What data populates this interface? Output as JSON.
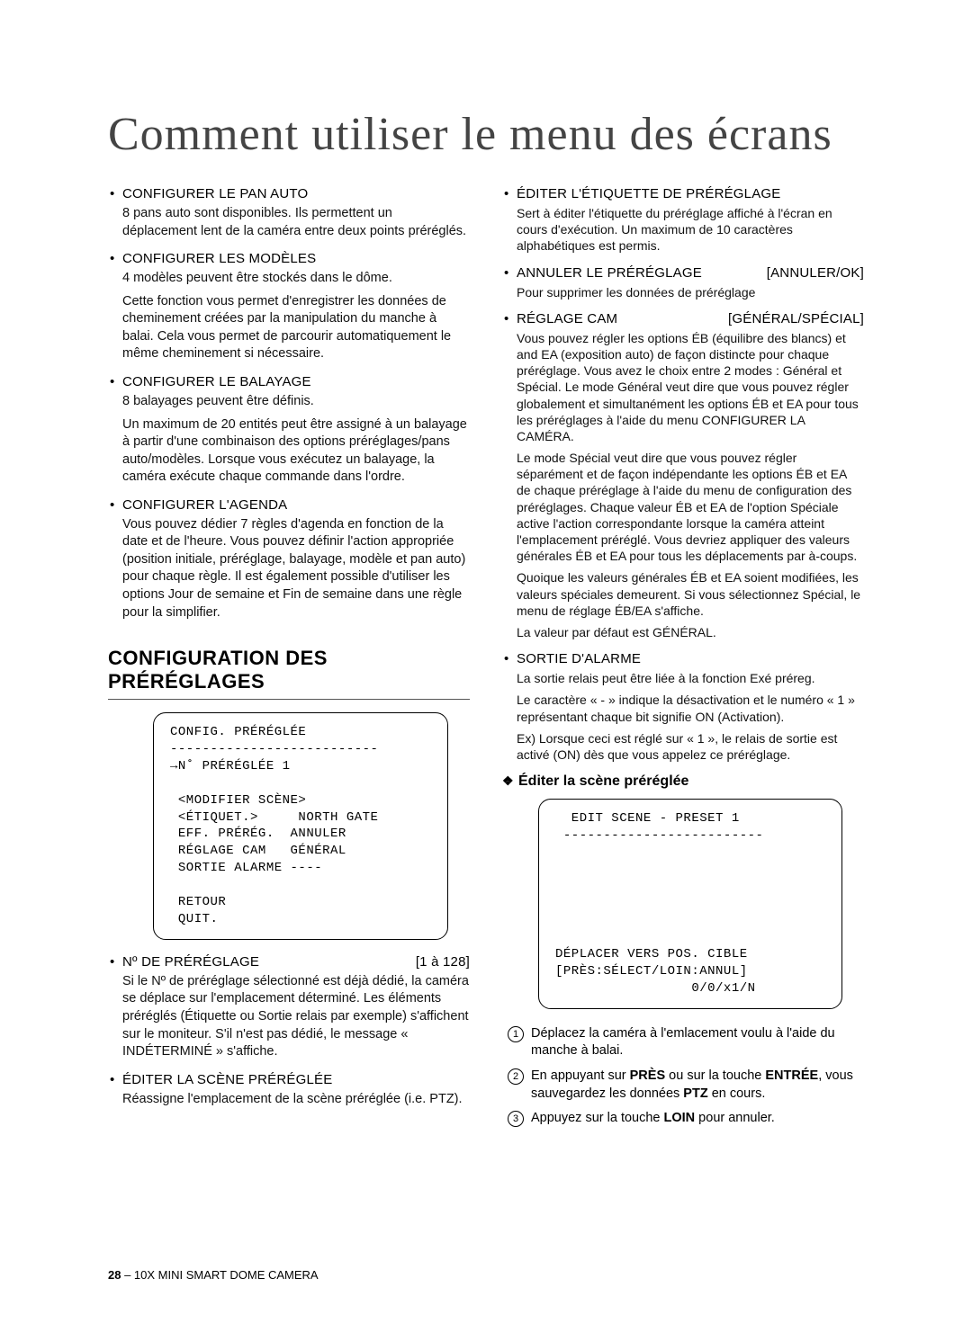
{
  "page": {
    "title": "Comment utiliser le menu des écrans",
    "footer_page": "28",
    "footer_text": " – 10X MINI SMART DOME CAMERA"
  },
  "left": {
    "items": [
      {
        "head": "CONFIGURER LE PAN AUTO",
        "body": [
          "8 pans auto sont disponibles. Ils permettent un déplacement lent de la caméra entre deux points préréglés."
        ]
      },
      {
        "head": "CONFIGURER LES MODÈLES",
        "body": [
          "4 modèles peuvent être stockés dans le dôme.",
          "Cette fonction vous permet d'enregistrer les données de cheminement créées par la manipulation du manche à balai. Cela vous permet de parcourir automatiquement le même cheminement si nécessaire."
        ]
      },
      {
        "head": "CONFIGURER LE BALAYAGE",
        "body": [
          "8 balayages peuvent être définis.",
          "Un maximum de 20 entités peut être assigné à un balayage à partir d'une combinaison des options préréglages/pans auto/modèles. Lorsque vous exécutez un balayage, la caméra exécute chaque commande dans l'ordre."
        ]
      },
      {
        "head": "CONFIGURER L'AGENDA",
        "body": [
          "Vous pouvez dédier 7 règles d'agenda en fonction de la date et de l'heure. Vous pouvez définir l'action appropriée (position initiale, préréglage, balayage, modèle et pan auto) pour chaque règle. Il est également possible d'utiliser les options Jour de semaine et Fin de semaine dans une règle pour la simplifier."
        ]
      }
    ],
    "section_title_1": "CONFIGURATION DES",
    "section_title_2": "PRÉRÉGLAGES",
    "menu": "CONFIG. PRÉRÉGLÉE\n--------------------------\n→N˚ PRÉRÉGLÉE 1\n\n <MODIFIER SCÈNE>\n <ÉTIQUET.>     NORTH GATE\n EFF. PRÉRÉG.  ANNULER\n RÉGLAGE CAM   GÉNÉRAL\n SORTIE ALARME ----\n\n RETOUR\n QUIT.",
    "after_items": [
      {
        "head": "Nº DE PRÉRÉGLAGE",
        "tag": "[1 à 128]",
        "body": [
          "Si le Nº de préréglage sélectionné est déjà dédié, la caméra se déplace sur l'emplacement déterminé. Les éléments préréglés (Étiquette ou Sortie relais par exemple) s'affichent sur le moniteur. S'il n'est pas dédié, le message « INDÉTERMINÉ » s'affiche."
        ]
      },
      {
        "head": "ÉDITER LA SCÈNE PRÉRÉGLÉE",
        "body": [
          "Réassigne l'emplacement de la scène préréglée (i.e. PTZ)."
        ]
      }
    ]
  },
  "right": {
    "items": [
      {
        "head": "ÉDITER L'ÉTIQUETTE DE PRÉRÉGLAGE",
        "body": [
          "Sert à éditer l'étiquette du préréglage affiché à l'écran en cours d'exécution. Un maximum de 10 caractères alphabétiques est permis."
        ]
      },
      {
        "head": "ANNULER LE PRÉRÉGLAGE",
        "tag": "[ANNULER/OK]",
        "body": [
          "Pour supprimer les données de préréglage"
        ]
      },
      {
        "head": "RÉGLAGE CAM",
        "tag": "[GÉNÉRAL/SPÉCIAL]",
        "body": [
          "Vous pouvez régler les options ÉB (équilibre des blancs) et and EA (exposition auto) de façon distincte pour chaque préréglage. Vous avez le choix entre 2 modes : Général et Spécial. Le mode Général veut dire que vous pouvez régler globalement et simultanément les options ÉB et EA pour tous les préréglages à l'aide du menu CONFIGURER LA CAMÉRA.",
          "Le mode Spécial veut dire que vous pouvez régler séparément et de façon indépendante les options ÉB et EA de chaque préréglage à l'aide du menu de configuration des préréglages. Chaque valeur ÉB et EA de l'option Spéciale active l'action correspondante lorsque la caméra atteint l'emplacement préréglé. Vous devriez appliquer des valeurs générales ÉB et EA pour tous les déplacements par à-coups.",
          "Quoique les valeurs générales ÉB et EA soient modifiées, les valeurs spéciales demeurent. Si vous sélectionnez Spécial, le menu de réglage ÉB/EA s'affiche.",
          "La valeur par défaut est GÉNÉRAL."
        ]
      },
      {
        "head": "SORTIE D'ALARME",
        "body": [
          "La sortie relais peut être liée à la fonction Exé préreg.",
          "Le caractère « - » indique la désactivation et le numéro « 1 » représentant chaque bit signifie ON (Activation).",
          "Ex) Lorsque ceci est réglé sur « 1 », le relais de sortie est activé (ON) dès que vous appelez ce préréglage."
        ]
      }
    ],
    "sub_heading": "Éditer la scène préréglée",
    "menu": "  EDIT SCENE - PRESET 1\n -------------------------\n\n\n\n\n\n\nDÉPLACER VERS POS. CIBLE\n[PRÈS:SÉLECT/LOIN:ANNUL]\n                 0/0/x1/N",
    "steps": [
      "Déplacez la caméra à l'emlacement voulu à l'aide du manche à balai.",
      "En appuyant sur <b>PRÈS</b> ou sur la touche <b>ENTRÉE</b>, vous sauvegardez les données <b>PTZ</b> en cours.",
      "Appuyez sur la touche <b>LOIN</b> pour annuler."
    ]
  }
}
